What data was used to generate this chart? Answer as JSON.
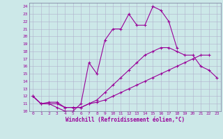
{
  "xlabel": "Windchill (Refroidissement éolien,°C)",
  "bg_color": "#cce8e8",
  "grid_color": "#b0b0cc",
  "line_color": "#990099",
  "xlim": [
    -0.5,
    23.5
  ],
  "ylim": [
    10,
    24.5
  ],
  "xticks": [
    0,
    1,
    2,
    3,
    4,
    5,
    6,
    7,
    8,
    9,
    10,
    11,
    12,
    13,
    14,
    15,
    16,
    17,
    18,
    19,
    20,
    21,
    22,
    23
  ],
  "yticks": [
    10,
    11,
    12,
    13,
    14,
    15,
    16,
    17,
    18,
    19,
    20,
    21,
    22,
    23,
    24
  ],
  "line1_x": [
    0,
    1,
    2,
    3,
    4,
    5,
    6,
    7,
    8,
    9,
    10,
    11,
    12,
    13,
    14,
    15,
    16,
    17,
    18
  ],
  "line1_y": [
    12.0,
    11.0,
    11.0,
    10.5,
    10.0,
    10.0,
    11.0,
    16.5,
    15.0,
    19.5,
    21.0,
    21.0,
    23.0,
    21.5,
    21.5,
    24.0,
    23.5,
    22.0,
    18.5
  ],
  "line2_x": [
    0,
    1,
    2,
    3,
    4,
    5,
    6,
    7,
    8,
    9,
    10,
    11,
    12,
    13,
    14,
    15,
    16,
    17,
    18,
    19,
    20,
    21,
    22,
    23
  ],
  "line2_y": [
    12.0,
    11.0,
    11.2,
    11.2,
    10.5,
    10.5,
    10.5,
    11.0,
    11.5,
    12.5,
    13.5,
    14.5,
    15.5,
    16.5,
    17.5,
    18.0,
    18.5,
    18.5,
    18.0,
    17.5,
    17.5,
    16.0,
    15.5,
    14.5
  ],
  "line3_x": [
    0,
    1,
    2,
    3,
    4,
    5,
    6,
    7,
    8,
    9,
    10,
    11,
    12,
    13,
    14,
    15,
    16,
    17,
    18,
    19,
    20,
    21,
    22,
    23
  ],
  "line3_y": [
    12.0,
    11.0,
    11.0,
    11.0,
    10.5,
    10.5,
    10.5,
    11.0,
    11.2,
    11.5,
    12.0,
    12.5,
    13.0,
    13.5,
    14.0,
    14.5,
    15.0,
    15.5,
    16.0,
    16.5,
    17.0,
    17.5,
    17.5,
    null
  ]
}
